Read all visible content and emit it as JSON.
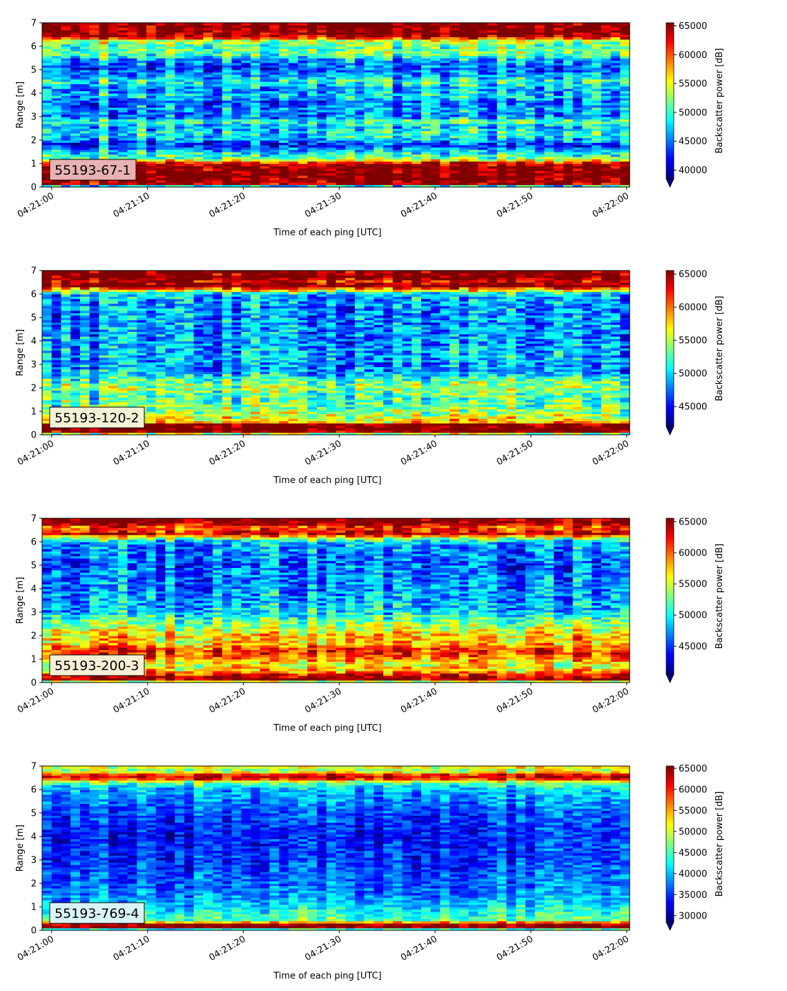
{
  "chart_data": [
    {
      "type": "heatmap",
      "sample_label": "55193-67-1",
      "label_box_color": "#e8b2b2",
      "xlabel": "Time of each ping [UTC]",
      "ylabel": "Range [m]",
      "x_ticks": [
        "04:21:00",
        "04:21:10",
        "04:21:20",
        "04:21:30",
        "04:21:40",
        "04:21:50",
        "04:22:00"
      ],
      "y_ticks": [
        "0",
        "1",
        "2",
        "3",
        "4",
        "5",
        "6",
        "7"
      ],
      "xlim_seconds": [
        -1,
        60.3
      ],
      "ylim": [
        0,
        7
      ],
      "colorbar": {
        "label": "Backscatter power [dB]",
        "min": 38500,
        "max": 65535,
        "ticks": [
          "40000",
          "45000",
          "50000",
          "55000",
          "60000",
          "65000"
        ],
        "tick_values": [
          40000,
          45000,
          50000,
          55000,
          60000,
          65000
        ],
        "extend": "min",
        "cmap": "jet"
      },
      "range_profile": [
        [
          0.0,
          40000
        ],
        [
          0.15,
          64000
        ],
        [
          0.3,
          66000
        ],
        [
          0.85,
          66000
        ],
        [
          1.0,
          63000
        ],
        [
          1.1,
          60000
        ],
        [
          1.2,
          52000
        ],
        [
          1.4,
          50000
        ],
        [
          1.6,
          47000
        ],
        [
          1.8,
          42000
        ],
        [
          2.0,
          47000
        ],
        [
          2.3,
          49000
        ],
        [
          2.6,
          47000
        ],
        [
          2.8,
          51000
        ],
        [
          3.0,
          45000
        ],
        [
          3.3,
          47000
        ],
        [
          3.6,
          44000
        ],
        [
          3.9,
          48000
        ],
        [
          4.2,
          46000
        ],
        [
          4.5,
          50000
        ],
        [
          4.8,
          46000
        ],
        [
          5.1,
          44000
        ],
        [
          5.4,
          46000
        ],
        [
          5.7,
          52000
        ],
        [
          6.0,
          51000
        ],
        [
          6.25,
          54000
        ],
        [
          6.4,
          64000
        ],
        [
          6.6,
          66000
        ],
        [
          7.0,
          66000
        ]
      ],
      "noise": 4500
    },
    {
      "type": "heatmap",
      "sample_label": "55193-120-2",
      "label_box_color": "#f3f2d6",
      "xlabel": "Time of each ping [UTC]",
      "ylabel": "Range [m]",
      "x_ticks": [
        "04:21:00",
        "04:21:10",
        "04:21:20",
        "04:21:30",
        "04:21:40",
        "04:21:50",
        "04:22:00"
      ],
      "y_ticks": [
        "0",
        "1",
        "2",
        "3",
        "4",
        "5",
        "6",
        "7"
      ],
      "xlim_seconds": [
        -1,
        60.3
      ],
      "ylim": [
        0,
        7
      ],
      "colorbar": {
        "label": "Backscatter power [dB]",
        "min": 42000,
        "max": 65535,
        "ticks": [
          "45000",
          "50000",
          "55000",
          "60000",
          "65000"
        ],
        "tick_values": [
          45000,
          50000,
          55000,
          60000,
          65000
        ],
        "extend": "min",
        "cmap": "jet"
      },
      "range_profile": [
        [
          0.0,
          44000
        ],
        [
          0.1,
          66000
        ],
        [
          0.45,
          66000
        ],
        [
          0.55,
          58000
        ],
        [
          0.8,
          55000
        ],
        [
          1.2,
          53000
        ],
        [
          1.6,
          52000
        ],
        [
          2.0,
          54000
        ],
        [
          2.3,
          53000
        ],
        [
          2.6,
          49000
        ],
        [
          3.0,
          48000
        ],
        [
          3.5,
          49000
        ],
        [
          4.0,
          48000
        ],
        [
          4.5,
          48000
        ],
        [
          5.0,
          48000
        ],
        [
          5.5,
          48000
        ],
        [
          6.0,
          49000
        ],
        [
          6.2,
          58000
        ],
        [
          6.35,
          66000
        ],
        [
          6.55,
          63000
        ],
        [
          6.75,
          66000
        ],
        [
          7.0,
          66000
        ]
      ],
      "noise": 4200
    },
    {
      "type": "heatmap",
      "sample_label": "55193-200-3",
      "label_box_color": "#f9efd6",
      "xlabel": "Time of each ping [UTC]",
      "ylabel": "Range [m]",
      "x_ticks": [
        "04:21:00",
        "04:21:10",
        "04:21:20",
        "04:21:30",
        "04:21:40",
        "04:21:50",
        "04:22:00"
      ],
      "y_ticks": [
        "0",
        "1",
        "2",
        "3",
        "4",
        "5",
        "6",
        "7"
      ],
      "xlim_seconds": [
        -1,
        60.3
      ],
      "ylim": [
        0,
        7
      ],
      "colorbar": {
        "label": "Backscatter power [dB]",
        "min": 40500,
        "max": 65535,
        "ticks": [
          "45000",
          "50000",
          "55000",
          "60000",
          "65000"
        ],
        "tick_values": [
          45000,
          50000,
          55000,
          60000,
          65000
        ],
        "extend": "min",
        "cmap": "jet"
      },
      "range_profile": [
        [
          0.0,
          44000
        ],
        [
          0.1,
          66000
        ],
        [
          0.3,
          64000
        ],
        [
          0.5,
          58000
        ],
        [
          0.8,
          56000
        ],
        [
          1.1,
          60000
        ],
        [
          1.4,
          62000
        ],
        [
          1.7,
          57000
        ],
        [
          2.0,
          58000
        ],
        [
          2.3,
          55000
        ],
        [
          2.7,
          52000
        ],
        [
          3.0,
          49000
        ],
        [
          3.5,
          48000
        ],
        [
          4.0,
          47000
        ],
        [
          4.5,
          47000
        ],
        [
          5.0,
          46000
        ],
        [
          5.5,
          47000
        ],
        [
          6.0,
          48000
        ],
        [
          6.2,
          56000
        ],
        [
          6.35,
          64000
        ],
        [
          6.6,
          60000
        ],
        [
          6.8,
          66000
        ],
        [
          7.0,
          66000
        ]
      ],
      "noise": 4200
    },
    {
      "type": "heatmap",
      "sample_label": "55193-769-4",
      "label_box_color": "#d9f4f6",
      "xlabel": "Time of each ping [UTC]",
      "ylabel": "Range [m]",
      "x_ticks": [
        "04:21:00",
        "04:21:10",
        "04:21:20",
        "04:21:30",
        "04:21:40",
        "04:21:50",
        "04:22:00"
      ],
      "y_ticks": [
        "0",
        "1",
        "2",
        "3",
        "4",
        "5",
        "6",
        "7"
      ],
      "xlim_seconds": [
        -1,
        60.3
      ],
      "ylim": [
        0,
        7
      ],
      "colorbar": {
        "label": "Backscatter power [dB]",
        "min": 28500,
        "max": 65535,
        "ticks": [
          "30000",
          "35000",
          "40000",
          "45000",
          "50000",
          "55000",
          "60000",
          "65000"
        ],
        "tick_values": [
          30000,
          35000,
          40000,
          45000,
          50000,
          55000,
          60000,
          65000
        ],
        "extend": "min",
        "cmap": "jet"
      },
      "range_profile": [
        [
          0.0,
          32000
        ],
        [
          0.15,
          66000
        ],
        [
          0.3,
          64000
        ],
        [
          0.4,
          46000
        ],
        [
          0.8,
          43000
        ],
        [
          1.2,
          40000
        ],
        [
          1.6,
          38000
        ],
        [
          2.0,
          37000
        ],
        [
          2.5,
          36000
        ],
        [
          3.0,
          35000
        ],
        [
          3.5,
          35000
        ],
        [
          4.0,
          34000
        ],
        [
          4.5,
          35000
        ],
        [
          5.0,
          36000
        ],
        [
          5.5,
          38000
        ],
        [
          6.0,
          40000
        ],
        [
          6.3,
          46000
        ],
        [
          6.5,
          64000
        ],
        [
          6.65,
          60000
        ],
        [
          6.8,
          48000
        ],
        [
          7.0,
          52000
        ]
      ],
      "noise": 4500
    }
  ]
}
